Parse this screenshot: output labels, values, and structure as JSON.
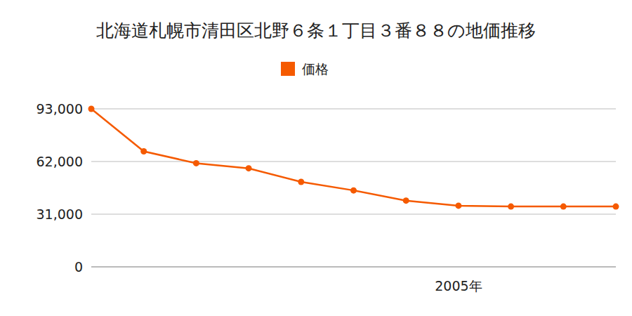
{
  "chart_data": {
    "type": "line",
    "title": "北海道札幌市清田区北野６条１丁目３番８８の地価推移",
    "categories": [
      null,
      null,
      null,
      null,
      null,
      null,
      null,
      "2005年",
      null,
      null,
      null
    ],
    "series": [
      {
        "name": "価格",
        "color": "#f55a00",
        "marker": "circle",
        "values": [
          93000,
          68000,
          61000,
          58000,
          50000,
          45000,
          39000,
          36000,
          35500,
          35500,
          35500
        ]
      }
    ],
    "ylim": [
      0,
      93000
    ],
    "yticks": [
      0,
      {
        "value": 31000,
        "label": "31,000"
      },
      {
        "value": 62000,
        "label": "62,000"
      },
      {
        "value": 93000,
        "label": "93,000"
      }
    ],
    "grid": true,
    "legend": "top"
  }
}
